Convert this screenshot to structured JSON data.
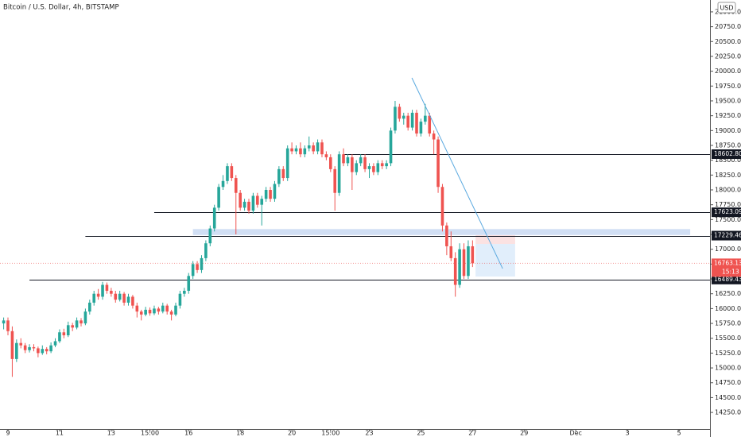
{
  "chart_data": {
    "type": "candlestick",
    "title": "Bitcoin / U.S. Dollar, 4h, BITSTAMP",
    "currency": "USD",
    "up_color": "#26a69a",
    "down_color": "#ef5350",
    "x": [
      -1,
      0,
      1,
      2,
      3,
      4,
      5,
      6,
      7,
      8,
      9,
      10,
      11,
      12,
      13,
      14,
      15,
      16,
      17,
      18,
      19,
      20,
      21,
      22,
      23,
      24,
      25,
      26,
      27,
      28,
      29,
      30,
      31,
      32,
      33,
      34,
      35,
      36,
      37,
      38,
      39,
      40,
      41,
      42,
      43,
      44,
      45,
      46,
      47,
      48,
      49,
      50,
      51,
      52,
      53,
      54,
      55,
      56,
      57,
      58,
      59,
      60,
      61,
      62,
      63,
      64,
      65,
      66,
      67,
      68,
      69,
      70,
      71,
      72,
      73,
      74,
      75,
      76,
      77,
      78,
      79,
      80,
      81,
      82,
      83,
      84,
      85,
      86,
      87,
      88,
      89,
      90,
      91,
      92,
      93,
      94,
      95,
      96,
      97,
      98,
      99,
      100,
      101,
      102,
      103,
      104,
      105,
      106,
      107,
      108
    ],
    "open": [
      15750,
      15800,
      15620,
      15150,
      15420,
      15380,
      15300,
      15350,
      15330,
      15250,
      15320,
      15280,
      15380,
      15450,
      15600,
      15550,
      15720,
      15680,
      15800,
      15750,
      15950,
      16100,
      16250,
      16200,
      16400,
      16300,
      16250,
      16150,
      16250,
      16100,
      16200,
      16050,
      15950,
      15900,
      15980,
      15920,
      16000,
      15950,
      16050,
      15950,
      15900,
      16050,
      16250,
      16300,
      16550,
      16750,
      16650,
      16850,
      17100,
      17350,
      17700,
      18050,
      18150,
      18400,
      18200,
      17950,
      17700,
      17800,
      17650,
      17900,
      17750,
      17850,
      18000,
      17850,
      18100,
      18350,
      18200,
      18700,
      18650,
      18700,
      18600,
      18700,
      18750,
      18650,
      18800,
      18600,
      18550,
      18350,
      17950,
      18600,
      18450,
      18550,
      18300,
      18450,
      18550,
      18350,
      18400,
      18300,
      18450,
      18400,
      18450,
      19000,
      19400,
      19200,
      19250,
      19050,
      19300,
      18950,
      19150,
      19250,
      18950,
      18850,
      18050,
      17400,
      17050,
      16850,
      16400,
      17000,
      16550,
      17050
    ],
    "high": [
      15850,
      15850,
      15700,
      15480,
      15500,
      15420,
      15400,
      15400,
      15360,
      15380,
      15350,
      15430,
      15500,
      15650,
      15660,
      15780,
      15760,
      15850,
      15840,
      16000,
      16150,
      16300,
      16330,
      16450,
      16440,
      16350,
      16300,
      16300,
      16280,
      16250,
      16230,
      16100,
      15980,
      16030,
      16020,
      16050,
      16030,
      16100,
      16080,
      15980,
      16100,
      16300,
      16350,
      16600,
      16800,
      16800,
      16900,
      17150,
      17400,
      17750,
      18100,
      18250,
      18450,
      18450,
      18250,
      18000,
      17850,
      17850,
      17950,
      17950,
      17900,
      18050,
      18050,
      18150,
      18400,
      18400,
      18750,
      18800,
      18750,
      18800,
      18750,
      18900,
      18800,
      18850,
      18850,
      18650,
      18600,
      18400,
      18650,
      18700,
      18600,
      18600,
      18500,
      18600,
      18600,
      18450,
      18450,
      18500,
      18500,
      18500,
      19050,
      19500,
      19450,
      19300,
      19300,
      19350,
      19350,
      19200,
      19450,
      19300,
      19000,
      18900,
      18100,
      17450,
      17300,
      16950,
      17100,
      17100,
      17150,
      17150
    ],
    "low": [
      15650,
      15550,
      14850,
      15100,
      15330,
      15250,
      15260,
      15280,
      15180,
      15220,
      15230,
      15250,
      15350,
      15420,
      15500,
      15520,
      15620,
      15650,
      15700,
      15720,
      15900,
      16050,
      16150,
      16150,
      16250,
      16200,
      16100,
      16120,
      16050,
      16050,
      16000,
      15850,
      15800,
      15870,
      15880,
      15890,
      15900,
      15920,
      15900,
      15800,
      15870,
      16000,
      16200,
      16250,
      16500,
      16600,
      16600,
      16800,
      17050,
      17300,
      17650,
      18000,
      18100,
      18150,
      17250,
      17650,
      17650,
      17600,
      17600,
      17700,
      17400,
      17800,
      17800,
      17800,
      18050,
      18150,
      18150,
      18600,
      18600,
      18550,
      18550,
      18650,
      18600,
      18600,
      18550,
      18500,
      18300,
      17650,
      17900,
      18400,
      18400,
      18000,
      18250,
      18400,
      18300,
      18200,
      18250,
      18250,
      18350,
      18350,
      18400,
      18950,
      19150,
      19100,
      19000,
      19000,
      18900,
      18900,
      19100,
      18900,
      18600,
      17950,
      17300,
      16900,
      16800,
      16200,
      16350,
      16500,
      16500,
      16700
    ],
    "close": [
      15800,
      15620,
      15150,
      15420,
      15380,
      15300,
      15350,
      15330,
      15250,
      15320,
      15280,
      15380,
      15450,
      15600,
      15550,
      15720,
      15680,
      15800,
      15750,
      15950,
      16100,
      16250,
      16200,
      16400,
      16300,
      16250,
      16150,
      16250,
      16100,
      16200,
      16050,
      15950,
      15900,
      15980,
      15920,
      16000,
      15950,
      16050,
      15950,
      15900,
      16050,
      16250,
      16300,
      16550,
      16750,
      16650,
      16850,
      17100,
      17350,
      17700,
      18050,
      18150,
      18400,
      18200,
      17950,
      17700,
      17800,
      17650,
      17900,
      17750,
      17850,
      18000,
      17850,
      18100,
      18350,
      18200,
      18700,
      18650,
      18700,
      18600,
      18700,
      18750,
      18650,
      18800,
      18600,
      18550,
      18350,
      17950,
      18600,
      18450,
      18550,
      18300,
      18450,
      18550,
      18350,
      18400,
      18300,
      18450,
      18400,
      18450,
      19000,
      19400,
      19200,
      19250,
      19050,
      19300,
      18950,
      19150,
      19250,
      18950,
      18850,
      18050,
      17400,
      17050,
      16850,
      16400,
      17000,
      16550,
      17050,
      16763.13
    ],
    "xlim": [
      -1.85,
      163.2
    ],
    "xticks": [
      {
        "value": 0,
        "label": "9"
      },
      {
        "value": 12,
        "label": "11"
      },
      {
        "value": 24,
        "label": "13"
      },
      {
        "value": 33,
        "label": "15:00"
      },
      {
        "value": 42,
        "label": "16"
      },
      {
        "value": 54,
        "label": "18"
      },
      {
        "value": 66,
        "label": "20"
      },
      {
        "value": 75,
        "label": "15:00"
      },
      {
        "value": 84,
        "label": "23"
      },
      {
        "value": 96,
        "label": "25"
      },
      {
        "value": 108,
        "label": "27"
      },
      {
        "value": 120,
        "label": "29"
      },
      {
        "value": 132,
        "label": "Dec"
      },
      {
        "value": 144,
        "label": "3"
      },
      {
        "value": 156,
        "label": "5"
      }
    ],
    "ylim": [
      13970,
      21200
    ],
    "yticks": [
      {
        "value": 14250,
        "label": "14250.00"
      },
      {
        "value": 14500,
        "label": "14500.00"
      },
      {
        "value": 14750,
        "label": "14750.00"
      },
      {
        "value": 15000,
        "label": "15000.00"
      },
      {
        "value": 15250,
        "label": "15250.00"
      },
      {
        "value": 15500,
        "label": "15500.00"
      },
      {
        "value": 15750,
        "label": "15750.00"
      },
      {
        "value": 16000,
        "label": "16000.00"
      },
      {
        "value": 16250,
        "label": "16250.00"
      },
      {
        "value": 16500,
        "label": "16500.00"
      },
      {
        "value": 16750,
        "label": "16750.00"
      },
      {
        "value": 17000,
        "label": "17000.00"
      },
      {
        "value": 17250,
        "label": "17250.00"
      },
      {
        "value": 17500,
        "label": "17500.00"
      },
      {
        "value": 17750,
        "label": "17750.00"
      },
      {
        "value": 18000,
        "label": "18000.00"
      },
      {
        "value": 18250,
        "label": "18250.00"
      },
      {
        "value": 18500,
        "label": "18500.00"
      },
      {
        "value": 18750,
        "label": "18750.00"
      },
      {
        "value": 19000,
        "label": "19000.00"
      },
      {
        "value": 19250,
        "label": "19250.00"
      },
      {
        "value": 19500,
        "label": "19500.00"
      },
      {
        "value": 19750,
        "label": "19750.00"
      },
      {
        "value": 20000,
        "label": "20000.00"
      },
      {
        "value": 20250,
        "label": "20250.00"
      },
      {
        "value": 20500,
        "label": "20500.00"
      },
      {
        "value": 20750,
        "label": "20750.00"
      },
      {
        "value": 21000,
        "label": "21000.00"
      }
    ],
    "levels": {
      "values": [
        18602.8,
        17623.09,
        17229.46,
        16489.43
      ],
      "value_labels": [
        "18602.80",
        "17623.09",
        "17229.46",
        "16489.43"
      ],
      "x_start": [
        78,
        34,
        18,
        5
      ]
    },
    "last_price": {
      "value": 16763.13,
      "countdown": "15:13"
    },
    "zone": {
      "x": [
        43,
        158.6
      ],
      "y": [
        17240,
        17340
      ],
      "color": "#c9d9f2"
    },
    "trend_line": {
      "x": [
        93.9,
        115
      ],
      "y": [
        19888,
        16674
      ],
      "color": "#5aa9e0"
    },
    "position": {
      "x": [
        108.7,
        117.9
      ],
      "entry": 17089,
      "stop": 17237,
      "target": 16540
    }
  }
}
